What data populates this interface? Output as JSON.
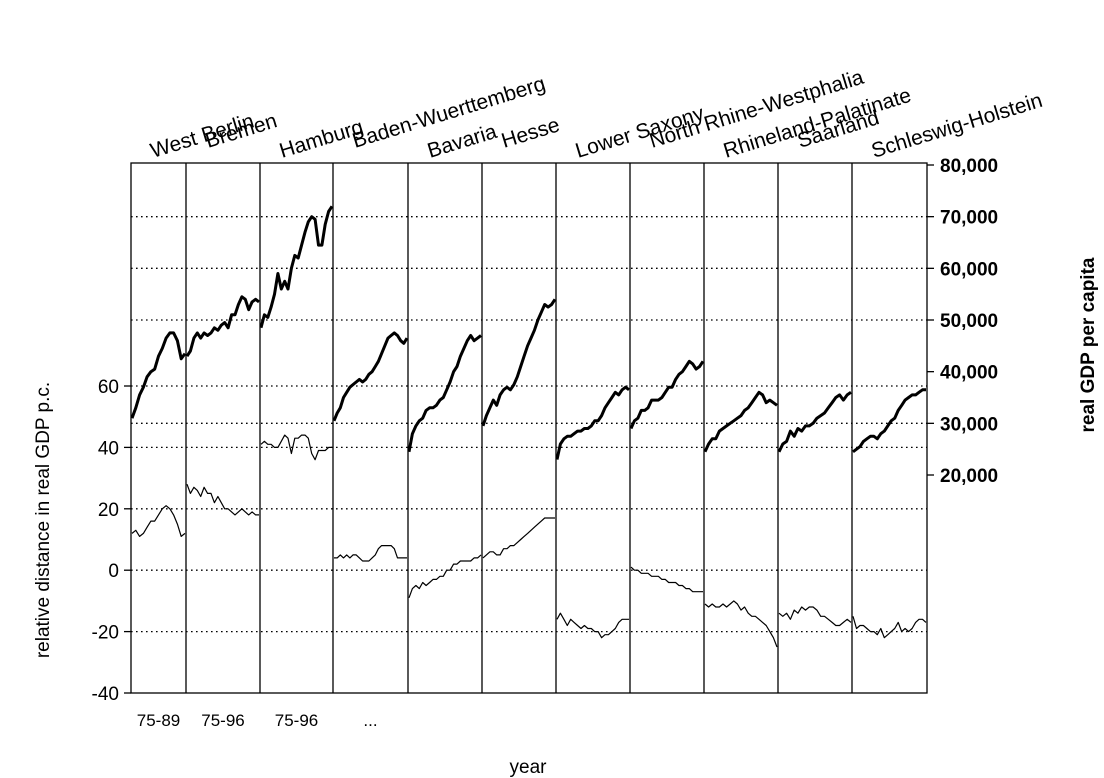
{
  "chart_data": {
    "type": "line",
    "title": "",
    "xlabel": "year",
    "ylabel_left": "relative distance in real GDP p.c.",
    "ylabel_right": "real GDP per capita",
    "left_axis": {
      "range": [
        -40,
        80
      ],
      "ticks": [
        "-40",
        "-20",
        "0",
        "20",
        "40",
        "60"
      ],
      "tick_values": [
        -40,
        -20,
        0,
        20,
        40,
        60
      ]
    },
    "right_axis": {
      "range": [
        0,
        80000
      ],
      "ticks": [
        "20,000",
        "30,000",
        "40,000",
        "50,000",
        "60,000",
        "70,000",
        "80,000"
      ],
      "tick_values": [
        20000,
        30000,
        40000,
        50000,
        60000,
        70000,
        80000
      ]
    },
    "gridlines": {
      "left_axis_values": [
        -20,
        0,
        20,
        40,
        60
      ],
      "right_axis_values": [
        30000,
        50000,
        60000,
        70000
      ]
    },
    "period_labels": [
      "75-89",
      "75-96",
      "75-96",
      "..."
    ],
    "series": [
      {
        "name": "real GDP per capita",
        "axis": "right",
        "style": "thick"
      },
      {
        "name": "relative distance in real GDP p.c.",
        "axis": "left",
        "style": "thin"
      }
    ],
    "states": [
      {
        "name": "West Berlin",
        "gdp": [
          31000,
          33000,
          35500,
          37000,
          39000,
          40000,
          40500,
          43000,
          44500,
          46500,
          47500,
          47500,
          46000,
          42500,
          43500
        ],
        "dist": [
          12,
          13,
          11,
          12,
          14,
          16,
          16,
          18,
          20,
          21,
          20,
          18,
          15,
          11,
          12
        ]
      },
      {
        "name": "Bremen",
        "gdp": [
          43000,
          44000,
          46500,
          47500,
          46500,
          47500,
          47000,
          47500,
          48500,
          48000,
          49000,
          49500,
          48500,
          51000,
          51000,
          53000,
          54500,
          54000,
          52000,
          53500,
          54000,
          53500
        ],
        "dist": [
          28,
          25,
          27,
          26,
          24,
          27,
          25,
          25,
          22,
          24,
          22,
          20,
          20,
          19,
          18,
          19,
          20,
          19,
          18,
          19,
          18,
          18
        ]
      },
      {
        "name": "Hamburg",
        "gdp": [
          48500,
          51000,
          50500,
          52500,
          55000,
          59000,
          56000,
          57500,
          56000,
          60000,
          62500,
          62000,
          64500,
          67000,
          69000,
          70000,
          69500,
          64500,
          64500,
          68500,
          71000,
          72000
        ],
        "dist": [
          41,
          42,
          41,
          41,
          40,
          40,
          42,
          44,
          43,
          38,
          43,
          43,
          44,
          44,
          43,
          38,
          36,
          39,
          39,
          39,
          40,
          40
        ]
      },
      {
        "name": "Baden-Wuerttemberg",
        "gdp": [
          30500,
          32000,
          33000,
          35000,
          36000,
          37000,
          37500,
          38000,
          38500,
          38000,
          38500,
          39500,
          40000,
          41000,
          42000,
          43500,
          45000,
          46500,
          47000,
          47500,
          47000,
          46000,
          45500,
          46500
        ],
        "dist": [
          4,
          4,
          5,
          4,
          5,
          4,
          5,
          5,
          4,
          3,
          3,
          3,
          4,
          5,
          7,
          8,
          8,
          8,
          8,
          7,
          4,
          4,
          4,
          4
        ]
      },
      {
        "name": "Bavaria",
        "gdp": [
          24500,
          28000,
          29500,
          30500,
          31000,
          32500,
          33000,
          33000,
          33500,
          34500,
          35000,
          36500,
          38000,
          40000,
          41000,
          43000,
          44500,
          46000,
          47000,
          46000,
          46500,
          47000
        ],
        "dist": [
          -9,
          -6,
          -5,
          -6,
          -4,
          -5,
          -4,
          -3,
          -3,
          -2,
          -2,
          0,
          0,
          2,
          2,
          3,
          3,
          3,
          3,
          4,
          4,
          5
        ]
      },
      {
        "name": "Hesse",
        "gdp": [
          29500,
          31500,
          33000,
          34500,
          33500,
          35500,
          36500,
          37000,
          36500,
          37500,
          39000,
          41000,
          43000,
          45000,
          46500,
          48000,
          50000,
          51500,
          53000,
          52500,
          53000,
          54000
        ],
        "dist": [
          4,
          5,
          6,
          6,
          5,
          5,
          7,
          7,
          8,
          8,
          9,
          10,
          11,
          12,
          13,
          14,
          15,
          16,
          17,
          17,
          17,
          17
        ]
      },
      {
        "name": "Lower Saxony",
        "gdp": [
          23000,
          26000,
          27000,
          27500,
          27500,
          28000,
          28500,
          28500,
          29000,
          29000,
          29500,
          30500,
          30500,
          31500,
          33000,
          34000,
          35000,
          36000,
          35500,
          36500,
          37000,
          36500
        ],
        "dist": [
          -16,
          -14,
          -16,
          -18,
          -16,
          -17,
          -18,
          -19,
          -18,
          -19,
          -19,
          -20,
          -20,
          -22,
          -21,
          -21,
          -20,
          -19,
          -17,
          -16,
          -16,
          -16
        ]
      },
      {
        "name": "North Rhine-Westphalia",
        "gdp": [
          29000,
          30500,
          31000,
          32500,
          32500,
          33000,
          34500,
          34500,
          34500,
          35000,
          36000,
          37000,
          37000,
          38500,
          39500,
          40000,
          41000,
          42000,
          41500,
          40500,
          41000,
          42000
        ],
        "dist": [
          1,
          0,
          0,
          -1,
          -1,
          -1,
          -2,
          -2,
          -2,
          -3,
          -3,
          -4,
          -4,
          -4,
          -5,
          -5,
          -6,
          -6,
          -7,
          -7,
          -7,
          -7
        ]
      },
      {
        "name": "Rhineland-Palatinate",
        "gdp": [
          24500,
          26000,
          27000,
          27000,
          28500,
          29000,
          29500,
          30000,
          30500,
          31000,
          31500,
          32500,
          33000,
          34000,
          35000,
          36000,
          35500,
          34000,
          34500,
          34000,
          33500
        ],
        "dist": [
          -11,
          -12,
          -11,
          -12,
          -12,
          -11,
          -12,
          -11,
          -10,
          -11,
          -13,
          -12,
          -14,
          -15,
          -15,
          -16,
          -17,
          -18,
          -20,
          -22,
          -25
        ]
      },
      {
        "name": "Saarland",
        "gdp": [
          24500,
          26000,
          26500,
          28500,
          27500,
          29000,
          28500,
          29500,
          29500,
          30000,
          31000,
          31500,
          32000,
          33000,
          34000,
          35000,
          35500,
          34500,
          35500,
          36000
        ],
        "dist": [
          -14,
          -15,
          -14,
          -16,
          -13,
          -14,
          -12,
          -13,
          -12,
          -12,
          -13,
          -15,
          -15,
          -16,
          -17,
          -18,
          -18,
          -17,
          -16,
          -17
        ]
      },
      {
        "name": "Schleswig-Holstein",
        "gdp": [
          24500,
          25000,
          25500,
          26500,
          27000,
          27500,
          27500,
          27000,
          28000,
          28500,
          29500,
          30500,
          31000,
          32500,
          33500,
          34500,
          35000,
          35500,
          35500,
          36000,
          36500,
          36500
        ],
        "dist": [
          -15,
          -19,
          -18,
          -18,
          -19,
          -20,
          -20,
          -21,
          -19,
          -22,
          -21,
          -20,
          -19,
          -17,
          -20,
          -19,
          -20,
          -19,
          -17,
          -16,
          -16,
          -17
        ]
      }
    ]
  }
}
